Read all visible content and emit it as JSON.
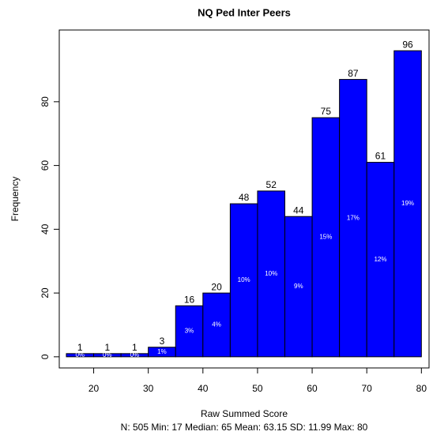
{
  "chart_data": {
    "type": "histogram",
    "title": "NQ Ped Inter Peers",
    "xlabel": "Raw Summed Score",
    "ylabel": "Frequency",
    "subtitle": "N: 505 Min: 17  Median: 65  Mean: 63.15  SD: 11.99  Max: 80",
    "bins": [
      15,
      20,
      25,
      30,
      35,
      40,
      45,
      50,
      55,
      60,
      65,
      70,
      75,
      80
    ],
    "values": [
      1,
      1,
      1,
      3,
      16,
      20,
      48,
      52,
      44,
      75,
      87,
      61,
      96
    ],
    "percent_labels": [
      "0%",
      "0%",
      "0%",
      "1%",
      "3%",
      "4%",
      "10%",
      "10%",
      "9%",
      "15%",
      "17%",
      "12%",
      "19%"
    ],
    "color": "#0000ff",
    "xlim": [
      13.7,
      81.4
    ],
    "xticks": [
      20,
      30,
      40,
      50,
      60,
      70,
      80
    ],
    "ylim": [
      -3.5,
      102.5
    ],
    "yticks": [
      0,
      20,
      40,
      60,
      80
    ]
  }
}
